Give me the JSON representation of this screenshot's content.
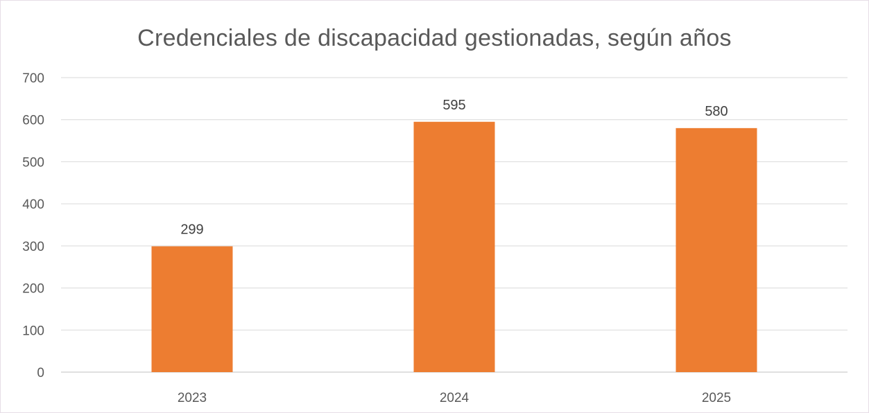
{
  "chart_data": {
    "type": "bar",
    "title": "Credenciales de discapacidad gestionadas, según años",
    "categories": [
      "2023",
      "2024",
      "2025"
    ],
    "values": [
      299,
      595,
      580
    ],
    "data_labels": [
      "299",
      "595",
      "580"
    ],
    "ylim": [
      0,
      700
    ],
    "yticks": [
      0,
      100,
      200,
      300,
      400,
      500,
      600,
      700
    ],
    "ytick_labels": [
      "0",
      "100",
      "200",
      "300",
      "400",
      "500",
      "600",
      "700"
    ],
    "xlabel": "",
    "ylabel": "",
    "grid": true,
    "legend": "none",
    "colors": {
      "bar": "#ED7D31",
      "grid": "#D9D9D9",
      "axis": "#BFBFBF",
      "text": "#595959"
    }
  }
}
